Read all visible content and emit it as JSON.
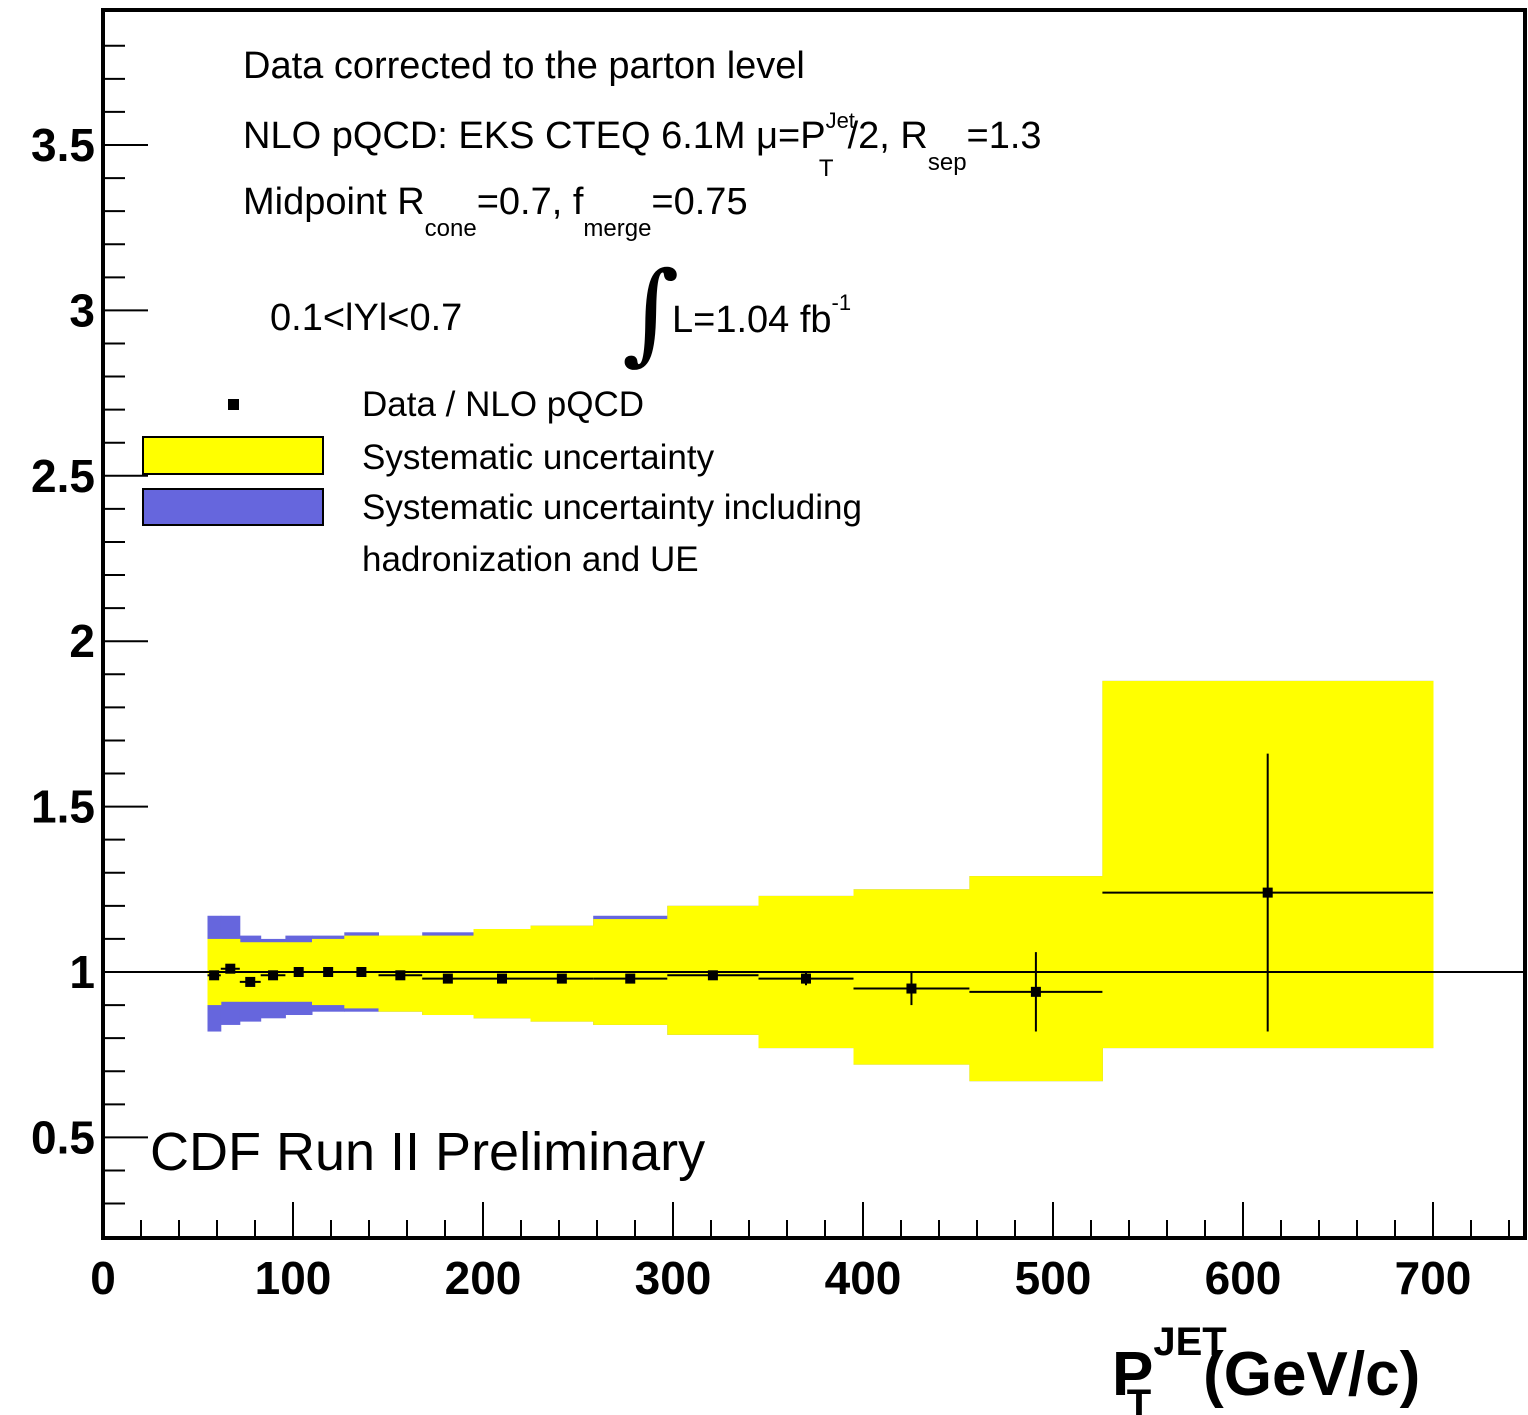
{
  "chart_data": {
    "type": "scatter",
    "xlabel": {
      "main": "P",
      "sup": "JET",
      "sub": "T",
      "unit": "(GeV/c)"
    },
    "ylabel": "",
    "xlim": [
      0,
      750
    ],
    "ylim": [
      0.2,
      3.9
    ],
    "x_ticks": [
      "0",
      "100",
      "200",
      "300",
      "400",
      "500",
      "600",
      "700"
    ],
    "y_ticks": [
      "0.5",
      "1",
      "1.5",
      "2",
      "2.5",
      "3",
      "3.5"
    ],
    "reference_line": 1,
    "annotations": {
      "line1": "Data corrected to the parton level",
      "line2": {
        "a": "NLO pQCD: EKS CTEQ 6.1M  μ=P",
        "sup_jet": "Jet",
        "sub_t": "T",
        "b": "/2, R",
        "sub_sep": "sep",
        "c": "=1.3"
      },
      "line3": {
        "a": "Midpoint  R",
        "sub_cone": "cone",
        "b": "=0.7, f",
        "sub_merge": "merge",
        "c": "=0.75"
      },
      "rapidity": "0.1<lYl<0.7",
      "lumi": {
        "integral": "∫",
        "a": "L=1.04 fb",
        "sup": "-1"
      },
      "preliminary": "CDF Run II Preliminary"
    },
    "legend": {
      "placement": "upper-left",
      "entries": [
        {
          "label": "Data / NLO pQCD",
          "marker": "square",
          "color": "#000000"
        },
        {
          "label": "Systematic uncertainty",
          "marker": "box",
          "color": "#ffff00"
        },
        {
          "label": "Systematic uncertainty including",
          "label2": "hadronization and UE",
          "marker": "box",
          "color": "#6666dd"
        }
      ]
    },
    "colors": {
      "data": "#000000",
      "syst": "#ffff00",
      "syst_had": "#6666dd"
    },
    "bins": [
      {
        "lo": 55,
        "hi": 62,
        "y": 0.99,
        "stat": 0.01,
        "syst": [
          0.9,
          1.1
        ],
        "had": [
          0.82,
          1.17
        ]
      },
      {
        "lo": 62,
        "hi": 72,
        "y": 1.01,
        "stat": 0.01,
        "syst": [
          0.91,
          1.1
        ],
        "had": [
          0.84,
          1.17
        ]
      },
      {
        "lo": 72,
        "hi": 83,
        "y": 0.97,
        "stat": 0.01,
        "syst": [
          0.91,
          1.09
        ],
        "had": [
          0.85,
          1.11
        ]
      },
      {
        "lo": 83,
        "hi": 96,
        "y": 0.99,
        "stat": 0.01,
        "syst": [
          0.91,
          1.09
        ],
        "had": [
          0.86,
          1.1
        ]
      },
      {
        "lo": 96,
        "hi": 110,
        "y": 1.0,
        "stat": 0.01,
        "syst": [
          0.91,
          1.09
        ],
        "had": [
          0.87,
          1.11
        ]
      },
      {
        "lo": 110,
        "hi": 127,
        "y": 1.0,
        "stat": 0.01,
        "syst": [
          0.9,
          1.1
        ],
        "had": [
          0.88,
          1.11
        ]
      },
      {
        "lo": 127,
        "hi": 145,
        "y": 1.0,
        "stat": 0.01,
        "syst": [
          0.89,
          1.11
        ],
        "had": [
          0.88,
          1.12
        ]
      },
      {
        "lo": 145,
        "hi": 168,
        "y": 0.99,
        "stat": 0.01,
        "syst": [
          0.88,
          1.11
        ],
        "had": [
          0.88,
          1.11
        ]
      },
      {
        "lo": 168,
        "hi": 195,
        "y": 0.98,
        "stat": 0.01,
        "syst": [
          0.87,
          1.11
        ],
        "had": [
          0.87,
          1.12
        ]
      },
      {
        "lo": 195,
        "hi": 225,
        "y": 0.98,
        "stat": 0.01,
        "syst": [
          0.86,
          1.13
        ],
        "had": [
          0.86,
          1.13
        ]
      },
      {
        "lo": 225,
        "hi": 258,
        "y": 0.98,
        "stat": 0.01,
        "syst": [
          0.85,
          1.14
        ],
        "had": [
          0.85,
          1.14
        ]
      },
      {
        "lo": 258,
        "hi": 297,
        "y": 0.98,
        "stat": 0.01,
        "syst": [
          0.84,
          1.16
        ],
        "had": [
          0.84,
          1.17
        ]
      },
      {
        "lo": 297,
        "hi": 345,
        "y": 0.99,
        "stat": 0.01,
        "syst": [
          0.81,
          1.2
        ],
        "had": [
          0.81,
          1.2
        ]
      },
      {
        "lo": 345,
        "hi": 395,
        "y": 0.98,
        "stat": 0.02,
        "syst": [
          0.77,
          1.23
        ],
        "had": [
          0.77,
          1.23
        ]
      },
      {
        "lo": 395,
        "hi": 456,
        "y": 0.95,
        "stat": 0.05,
        "syst": [
          0.72,
          1.25
        ],
        "had": [
          0.72,
          1.25
        ]
      },
      {
        "lo": 456,
        "hi": 526,
        "y": 0.94,
        "stat": 0.12,
        "syst": [
          0.67,
          1.29
        ],
        "had": [
          0.67,
          1.29
        ]
      },
      {
        "lo": 526,
        "hi": 700,
        "y": 1.24,
        "stat": 0.42,
        "syst": [
          0.77,
          1.88
        ],
        "had": [
          0.77,
          1.88
        ]
      }
    ]
  }
}
